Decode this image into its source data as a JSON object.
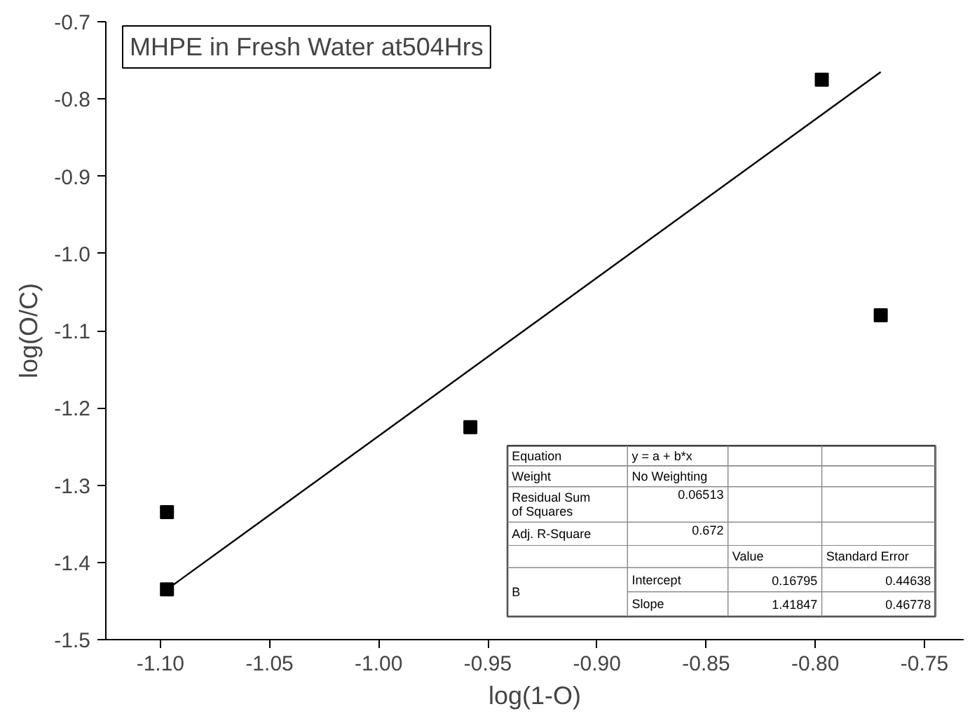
{
  "chart_data": {
    "type": "scatter",
    "title": "MHPE in Fresh Water at504Hrs",
    "xlabel": "log(1-O)",
    "ylabel": "log(O/C)",
    "xlim": [
      -1.125,
      -0.732
    ],
    "ylim": [
      -1.5,
      -0.7
    ],
    "xticks": [
      {
        "value": -1.1,
        "label": "-1.10"
      },
      -1.05,
      {
        "value": -1,
        "label": "-1.00"
      },
      -0.95,
      {
        "value": -0.9,
        "label": "-0.90"
      },
      -0.85,
      {
        "value": -0.8,
        "label": "-0.80"
      },
      -0.75
    ],
    "yticks": [
      -1.5,
      -1.4,
      -1.3,
      -1.2,
      -1.1,
      {
        "value": -1,
        "label": "-1.0"
      },
      -0.9,
      -0.8,
      -0.7
    ],
    "grid": false,
    "marker": "square",
    "series": [
      {
        "color": "#000000",
        "x": [
          -1.097,
          -1.097,
          -0.958,
          -0.797,
          -0.77
        ],
        "values": [
          -1.335,
          -1.435,
          -1.225,
          -0.775,
          -1.08
        ]
      },
      {
        "type": "line",
        "color": "#000000",
        "marker": "none",
        "line_style": "solid",
        "x": [
          -1.097,
          -0.77
        ],
        "values": [
          -1.435,
          -0.765
        ]
      }
    ],
    "annotations": [
      "Equation",
      "y = a + b*x",
      "Weight",
      "No Weighting",
      "Residual Sum\nof Squares",
      "0.06513",
      "Adj. R-Square",
      "0.672",
      "Value",
      "Standard Error",
      "B",
      "Intercept",
      "0.16795",
      "0.44638",
      "Slope",
      "1.41847",
      "0.46778"
    ]
  }
}
